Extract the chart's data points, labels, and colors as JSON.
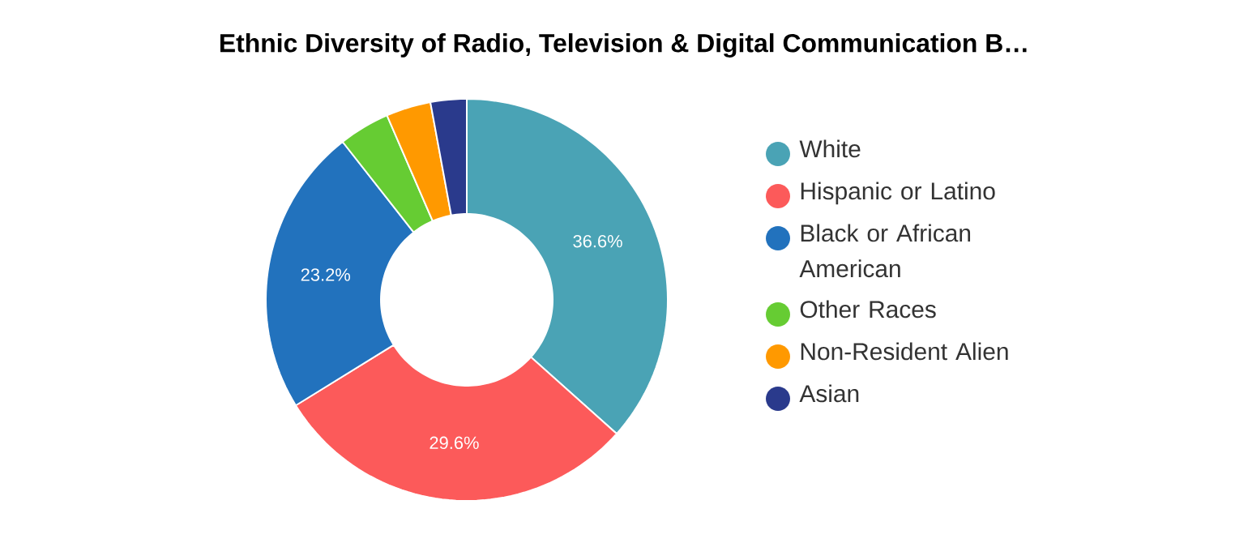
{
  "chart_data": {
    "type": "donut",
    "title": "Ethnic Diversity of Radio, Television & Digital Communication B…",
    "categories": [
      "White",
      "Hispanic or Latino",
      "Black or African American",
      "Other Races",
      "Non-Resident Alien",
      "Asian"
    ],
    "values": [
      36.6,
      29.6,
      23.2,
      4.1,
      3.6,
      2.9
    ],
    "value_labels": [
      "36.6%",
      "29.6%",
      "23.2%",
      null,
      null,
      null
    ],
    "colors": [
      "#4aa3b5",
      "#fc5a5a",
      "#2272bd",
      "#66cc33",
      "#ff9900",
      "#2a3a8c"
    ],
    "legend": "right"
  }
}
